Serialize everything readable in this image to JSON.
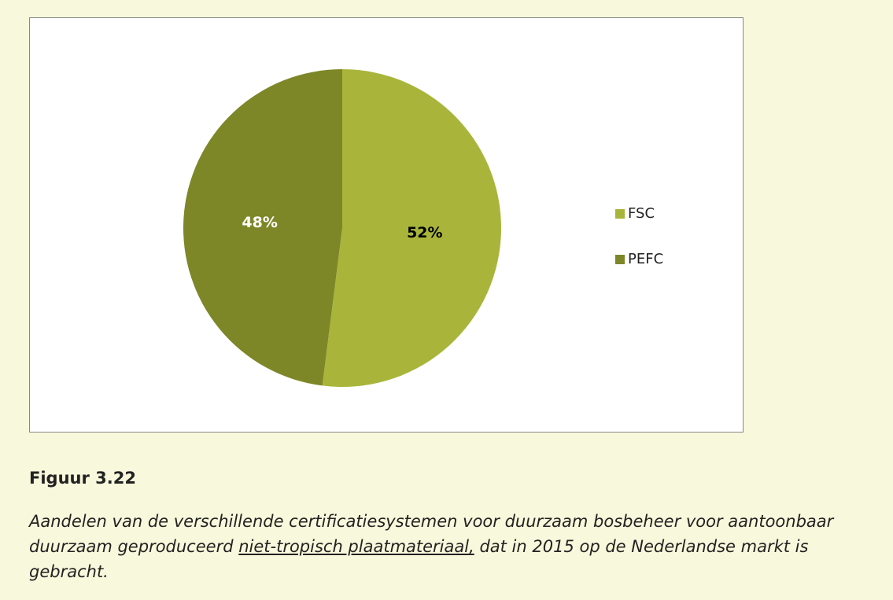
{
  "chart_data": {
    "type": "pie",
    "categories": [
      "FSC",
      "PEFC"
    ],
    "values": [
      52,
      48
    ],
    "value_labels": [
      "52%",
      "48%"
    ],
    "colors": [
      "#a9b53a",
      "#7d8727"
    ],
    "value_label_colors": [
      "#000000",
      "#ffffff"
    ],
    "legend": "right"
  },
  "figure": {
    "title": "Figuur 3.22",
    "caption": [
      "Aandelen van de verschillende certificatiesystemen voor duurzaam bosbeheer voor aantoonbaar duurzaam geproduceerd ",
      "niet-tropisch plaatmateriaal,",
      " dat in 2015 op de Nederlandse markt is gebracht."
    ]
  }
}
